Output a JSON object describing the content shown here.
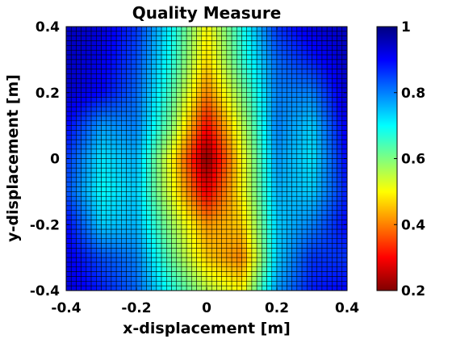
{
  "chart_data": {
    "type": "heatmap",
    "title": "Quality Measure",
    "xlabel": "x-displacement [m]",
    "ylabel": "y-displacement [m]",
    "xlim": [
      -0.4,
      0.4
    ],
    "ylim": [
      -0.4,
      0.4
    ],
    "x_ticks": [
      -0.4,
      -0.2,
      0,
      0.2,
      0.4
    ],
    "x_tick_labels": [
      "-0.4",
      "-0.2",
      "0",
      "0.2",
      "0.4"
    ],
    "y_ticks": [
      -0.4,
      -0.2,
      0,
      0.2,
      0.4
    ],
    "y_tick_labels": [
      "-0.4",
      "-0.2",
      "0",
      "0.2",
      "0.4"
    ],
    "colorbar": {
      "min": 0.2,
      "max": 1,
      "ticks": [
        0.2,
        0.4,
        0.6,
        0.8,
        1
      ],
      "tick_labels": [
        "0.2",
        "0.4",
        "0.6",
        "0.8",
        "1"
      ],
      "colormap": "jet",
      "reversed": true,
      "position": "right"
    },
    "grid": false,
    "cell_edge_color": "#000000",
    "grid_resolution": {
      "nx": 56,
      "ny": 56
    },
    "field_description_values": {
      "minimum": {
        "x": 0.0,
        "y": 0.0,
        "value": 0.2
      },
      "background_value": 0.95
    },
    "rows_y": [
      0.4,
      0.3,
      0.2,
      0.1,
      0.0,
      -0.1,
      -0.2,
      -0.3,
      -0.4
    ],
    "cols_x": [
      -0.4,
      -0.3,
      -0.2,
      -0.1,
      0.0,
      0.1,
      0.2,
      0.3,
      0.4
    ],
    "values": [
      [
        0.95,
        0.93,
        0.86,
        0.7,
        0.5,
        0.68,
        0.86,
        0.93,
        0.95
      ],
      [
        0.95,
        0.92,
        0.84,
        0.68,
        0.47,
        0.66,
        0.82,
        0.88,
        0.95
      ],
      [
        0.94,
        0.9,
        0.82,
        0.64,
        0.4,
        0.6,
        0.8,
        0.8,
        0.94
      ],
      [
        0.9,
        0.78,
        0.8,
        0.6,
        0.3,
        0.55,
        0.8,
        0.74,
        0.92
      ],
      [
        0.86,
        0.72,
        0.76,
        0.5,
        0.2,
        0.5,
        0.78,
        0.72,
        0.9
      ],
      [
        0.84,
        0.7,
        0.74,
        0.52,
        0.28,
        0.5,
        0.76,
        0.74,
        0.88
      ],
      [
        0.9,
        0.74,
        0.76,
        0.58,
        0.42,
        0.46,
        0.74,
        0.8,
        0.9
      ],
      [
        0.92,
        0.84,
        0.8,
        0.62,
        0.46,
        0.4,
        0.74,
        0.86,
        0.86
      ],
      [
        0.93,
        0.88,
        0.82,
        0.68,
        0.56,
        0.5,
        0.78,
        0.88,
        0.9
      ]
    ]
  }
}
